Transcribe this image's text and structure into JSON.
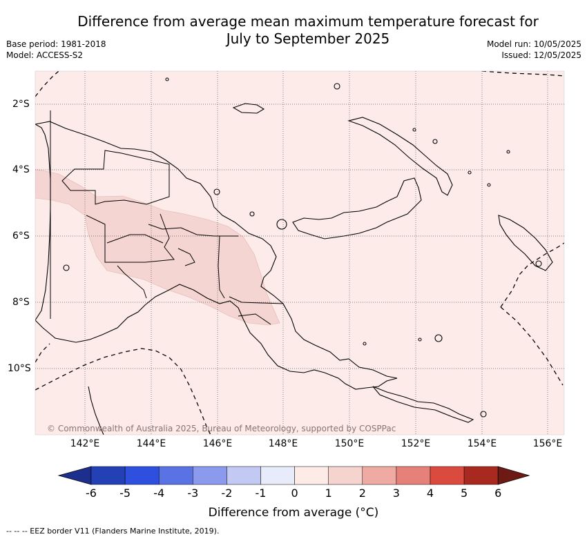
{
  "title_line1": "Difference from average mean maximum temperature forecast for",
  "title_line2": "July to September 2025",
  "meta": {
    "base_period": "Base period: 1981-2018",
    "model": "Model: ACCESS-S2",
    "model_run": "Model run: 10/05/2025",
    "issued": "Issued: 12/05/2025"
  },
  "map": {
    "lon_range": [
      140.6,
      156.5
    ],
    "lat_range": [
      -12.0,
      -1.0
    ],
    "background_category": "0 to 1",
    "highland_category": "1 to 2",
    "lat_ticks": [
      "2°S",
      "4°S",
      "6°S",
      "8°S",
      "10°S"
    ],
    "lon_ticks": [
      "142°E",
      "144°E",
      "146°E",
      "148°E",
      "150°E",
      "152°E",
      "154°E",
      "156°E"
    ],
    "copyright": "© Commonwealth of Australia 2025, Bureau of Meteorology, supported by COSPPac"
  },
  "colorbar": {
    "ticks": [
      "-6",
      "-5",
      "-4",
      "-3",
      "-2",
      "-1",
      "0",
      "1",
      "2",
      "3",
      "4",
      "5",
      "6"
    ],
    "colors": [
      "#1c2f8c",
      "#2440b5",
      "#2f4fdf",
      "#5a73e4",
      "#8b9aec",
      "#c2c9f3",
      "#e8ebfa",
      "#fcebe6",
      "#f5d4d0",
      "#efaaa4",
      "#e6817a",
      "#da4a3e",
      "#a8291f",
      "#6e1a14"
    ],
    "label": "Difference from average (°C)"
  },
  "legend": {
    "eez": "--  --  -- EEZ border V11 (Flanders Marine Institute, 2019)."
  }
}
